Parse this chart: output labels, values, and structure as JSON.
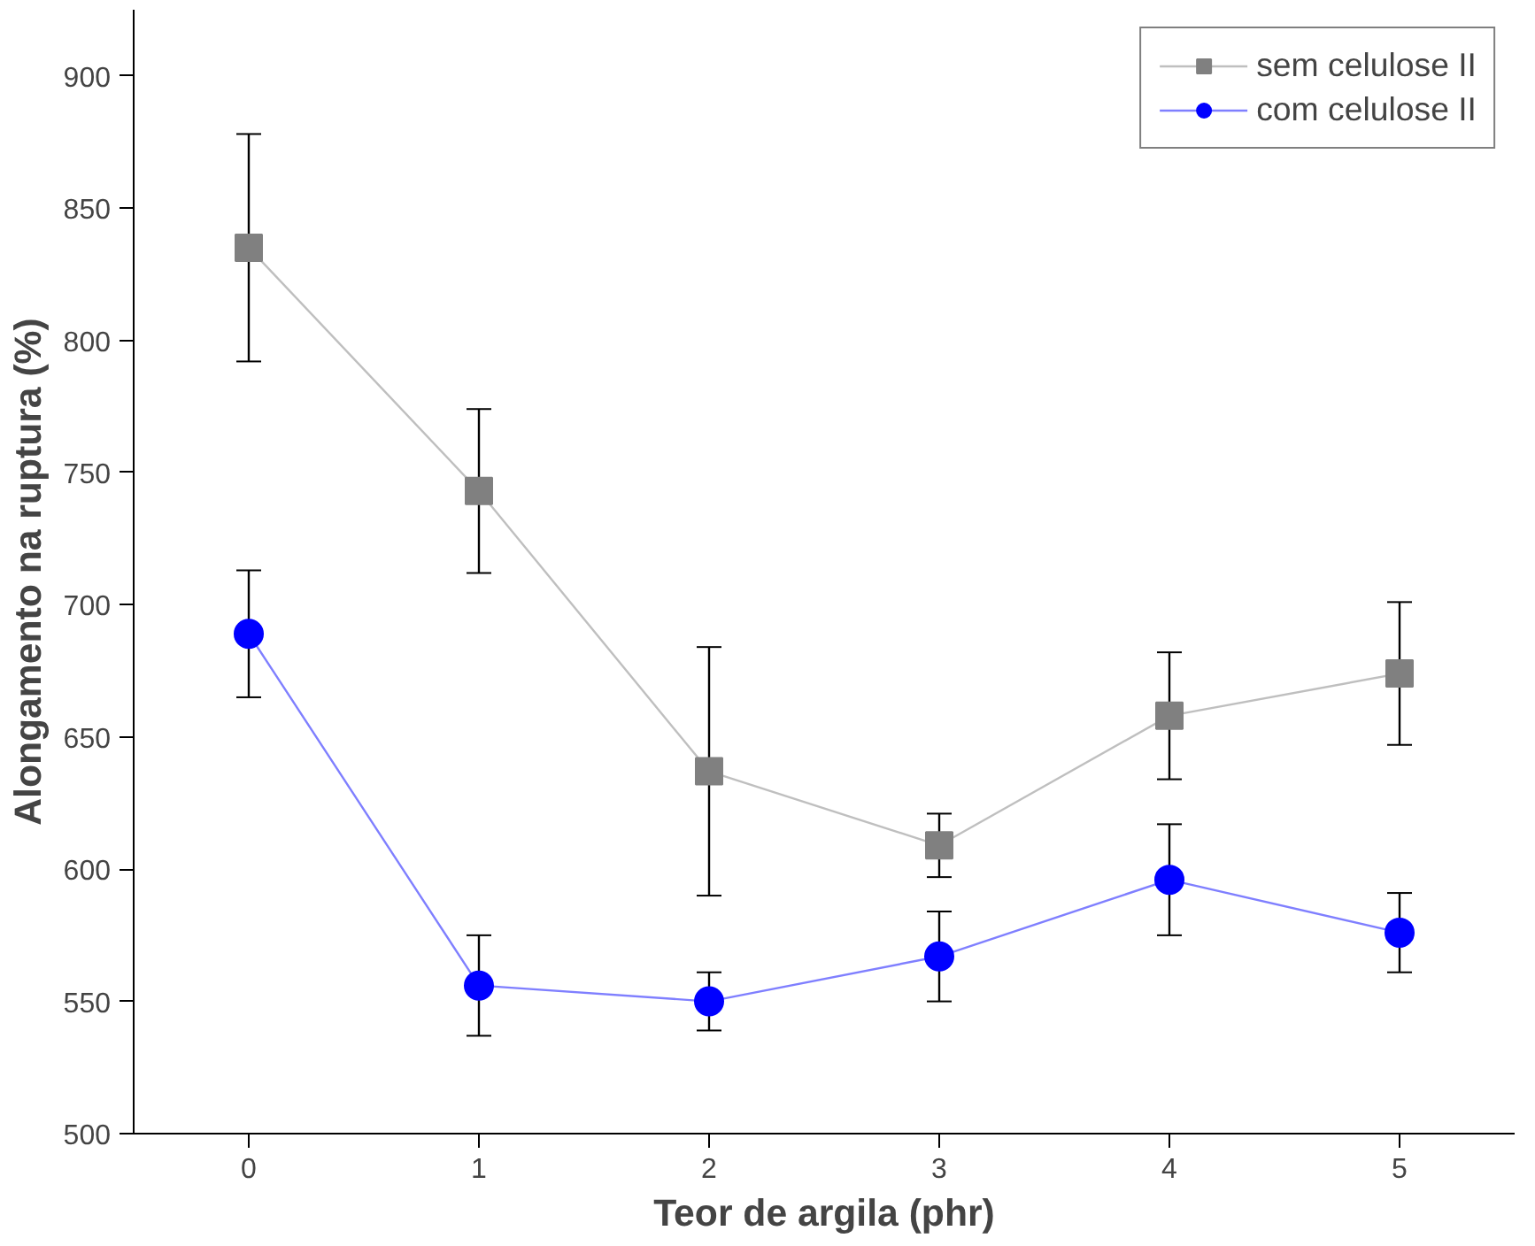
{
  "chart_data": {
    "type": "line",
    "xlabel": "Teor de argila (phr)",
    "ylabel": "Alongamento na ruptura (%)",
    "x": [
      0,
      1,
      2,
      3,
      4,
      5
    ],
    "xlim": [
      -0.5,
      5.5
    ],
    "xticks": [
      0,
      1,
      2,
      3,
      4,
      5
    ],
    "ylim": [
      500,
      925
    ],
    "yticks": [
      500,
      550,
      600,
      650,
      700,
      750,
      800,
      850,
      900
    ],
    "grid": false,
    "legend": "top right",
    "series": [
      {
        "name": "sem celulose II",
        "color": "#808080",
        "marker": "square",
        "values": [
          835,
          743,
          637,
          609,
          658,
          674
        ],
        "errors": [
          43,
          31,
          47,
          12,
          24,
          27
        ]
      },
      {
        "name": "com celulose II",
        "color": "#0000ff",
        "marker": "circle",
        "values": [
          689,
          556,
          550,
          567,
          596,
          576
        ],
        "errors": [
          24,
          19,
          11,
          17,
          21,
          15
        ]
      }
    ]
  }
}
